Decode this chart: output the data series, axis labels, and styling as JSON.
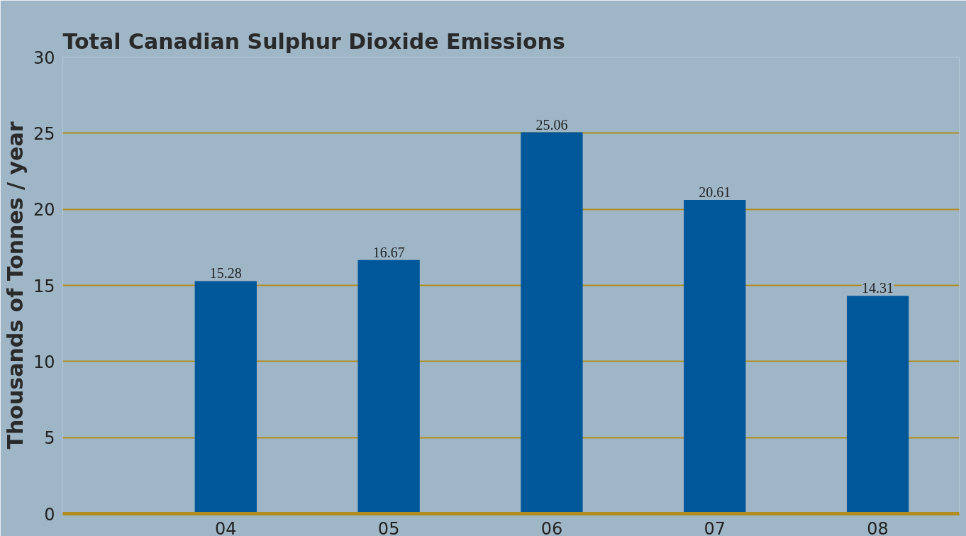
{
  "chart_data": {
    "type": "bar",
    "title": "Total Canadian Sulphur Dioxide Emissions",
    "ylabel": "Thousands of Tonnes / year",
    "categories": [
      "04",
      "05",
      "06",
      "07",
      "08"
    ],
    "values": [
      15.28,
      16.67,
      25.06,
      20.61,
      14.31
    ],
    "color": "#00579a",
    "ylim": [
      0,
      30
    ],
    "yticks": [
      0,
      5,
      10,
      15,
      20,
      25,
      30
    ],
    "grid": "y",
    "data_labels": true
  }
}
